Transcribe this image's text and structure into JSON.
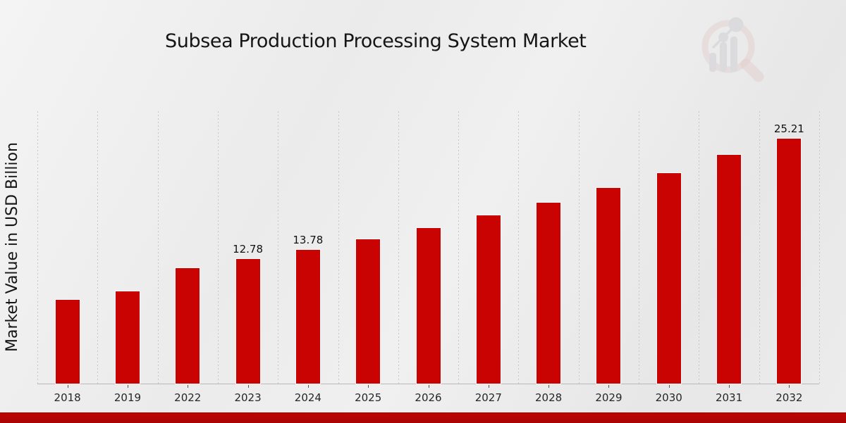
{
  "header": {
    "title": "Subsea Production Processing System Market",
    "logo": "market-research-magnifier-watermark"
  },
  "chart_data": {
    "type": "bar",
    "title": "Subsea Production Processing System Market",
    "xlabel": "",
    "ylabel": "Market Value in USD Billion",
    "ylim": [
      0,
      28
    ],
    "grid": "vertical-dotted",
    "legend": "none",
    "bar_color": "#c90202",
    "bar_edge_color": "#fafafa",
    "categories": [
      "2018",
      "2019",
      "2022",
      "2023",
      "2024",
      "2025",
      "2026",
      "2027",
      "2028",
      "2029",
      "2030",
      "2031",
      "2032"
    ],
    "values": [
      8.6,
      9.5,
      11.85,
      12.78,
      13.78,
      14.86,
      16.02,
      17.28,
      18.63,
      20.09,
      21.66,
      23.55,
      25.21
    ],
    "data_labels": [
      "",
      "",
      "",
      "12.78",
      "13.78",
      "",
      "",
      "",
      "",
      "",
      "",
      "",
      "25.21"
    ]
  },
  "page": {
    "background_color": "#ececec",
    "footer_strip_color": "#b30404",
    "gridline_color": "#c7c7c7",
    "axis_color": "#b9b9b9",
    "logo_ring_color": "#debfbf",
    "logo_bar_color": "#d2d2d7"
  }
}
